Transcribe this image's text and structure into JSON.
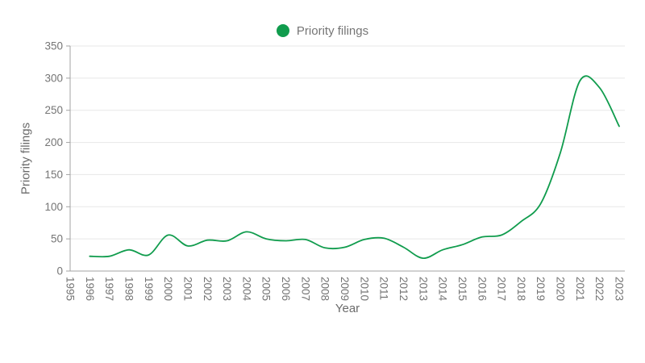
{
  "legend": {
    "label": "Priority filings"
  },
  "colors": {
    "line": "#109c4d",
    "legend_dot": "#109c4d",
    "grid": "#e7e7e7",
    "axis_line": "#a3a3a3",
    "tick_text": "#757575",
    "axis_title_text": "#6b6b6b",
    "background": "#ffffff"
  },
  "chart_data": {
    "type": "line",
    "smooth": true,
    "title": "",
    "xlabel": "Year",
    "ylabel": "Priority filings",
    "legend_position": "top-center",
    "grid": true,
    "xlim": [
      1995,
      2023
    ],
    "ylim": [
      0,
      350
    ],
    "y_ticks": [
      0,
      50,
      100,
      150,
      200,
      250,
      300,
      350
    ],
    "x_ticks": [
      1995,
      1996,
      1997,
      1998,
      1999,
      2000,
      2001,
      2002,
      2003,
      2004,
      2005,
      2006,
      2007,
      2008,
      2009,
      2010,
      2011,
      2012,
      2013,
      2014,
      2015,
      2016,
      2017,
      2018,
      2019,
      2020,
      2021,
      2022,
      2023
    ],
    "x": [
      1996,
      1997,
      1998,
      1999,
      2000,
      2001,
      2002,
      2003,
      2004,
      2005,
      2006,
      2007,
      2008,
      2009,
      2010,
      2011,
      2012,
      2013,
      2014,
      2015,
      2016,
      2017,
      2018,
      2019,
      2020,
      2021,
      2022,
      2023
    ],
    "series": [
      {
        "name": "Priority filings",
        "color": "#109c4d",
        "values": [
          23,
          23,
          33,
          25,
          56,
          39,
          48,
          47,
          61,
          50,
          47,
          49,
          36,
          37,
          49,
          51,
          37,
          20,
          33,
          41,
          53,
          56,
          77,
          105,
          184,
          296,
          285,
          225
        ]
      }
    ]
  }
}
